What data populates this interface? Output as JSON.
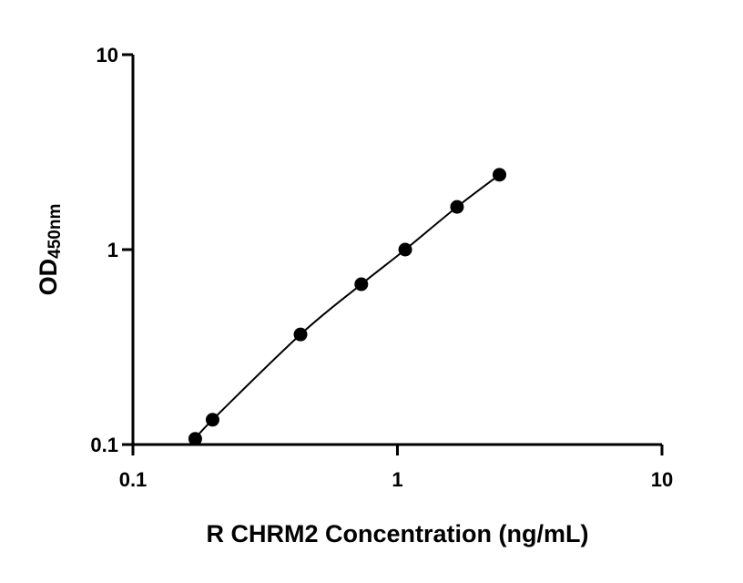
{
  "chart_data": {
    "type": "scatter",
    "title": "",
    "xlabel": "R CHRM2 Concentration (ng/mL)",
    "ylabel_main": "OD",
    "ylabel_sub": "450nm",
    "x_scale": "log",
    "y_scale": "log",
    "xlim": [
      0.1,
      10
    ],
    "ylim": [
      0.1,
      10
    ],
    "x_ticks": [
      "0.1",
      "1",
      "10"
    ],
    "y_ticks": [
      "0.1",
      "1",
      "10"
    ],
    "grid": false,
    "series": [
      {
        "x": [
          0.172,
          0.2,
          0.43,
          0.73,
          1.07,
          1.68,
          2.43
        ],
        "y": [
          0.107,
          0.134,
          0.367,
          0.664,
          1.0,
          1.656,
          2.42
        ]
      }
    ],
    "fit_curve": true
  }
}
